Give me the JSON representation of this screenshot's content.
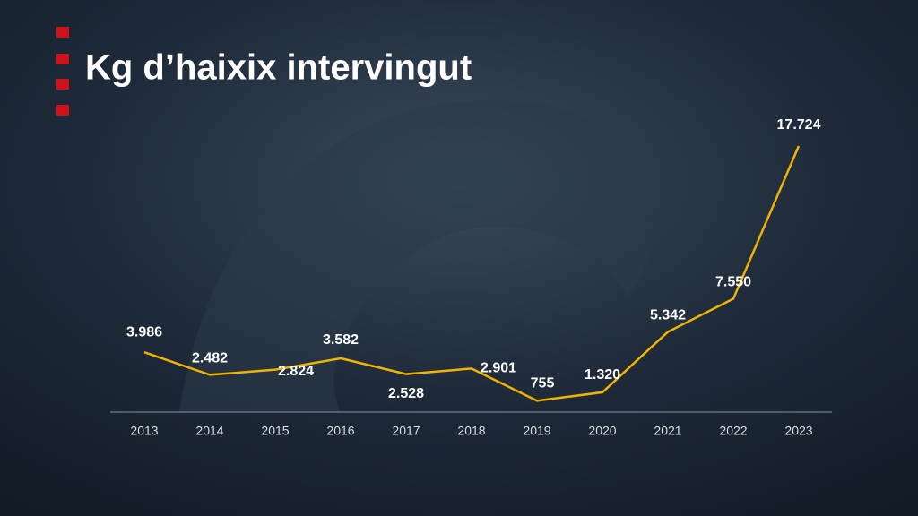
{
  "chart_data": {
    "type": "line",
    "title": "Kg d’haixix intervingut",
    "categories": [
      "2013",
      "2014",
      "2015",
      "2016",
      "2017",
      "2018",
      "2019",
      "2020",
      "2021",
      "2022",
      "2023"
    ],
    "series": [
      {
        "name": "Kg d’haixix intervingut",
        "color": "#f0b400",
        "values": [
          3986,
          2482,
          2824,
          3582,
          2528,
          2901,
          755,
          1320,
          5342,
          7550,
          17724
        ],
        "value_labels": [
          "3.986",
          "2.482",
          "2.824",
          "3.582",
          "2.528",
          "2.901",
          "755",
          "1.320",
          "5.342",
          "7.550",
          "17.724"
        ]
      }
    ]
  }
}
